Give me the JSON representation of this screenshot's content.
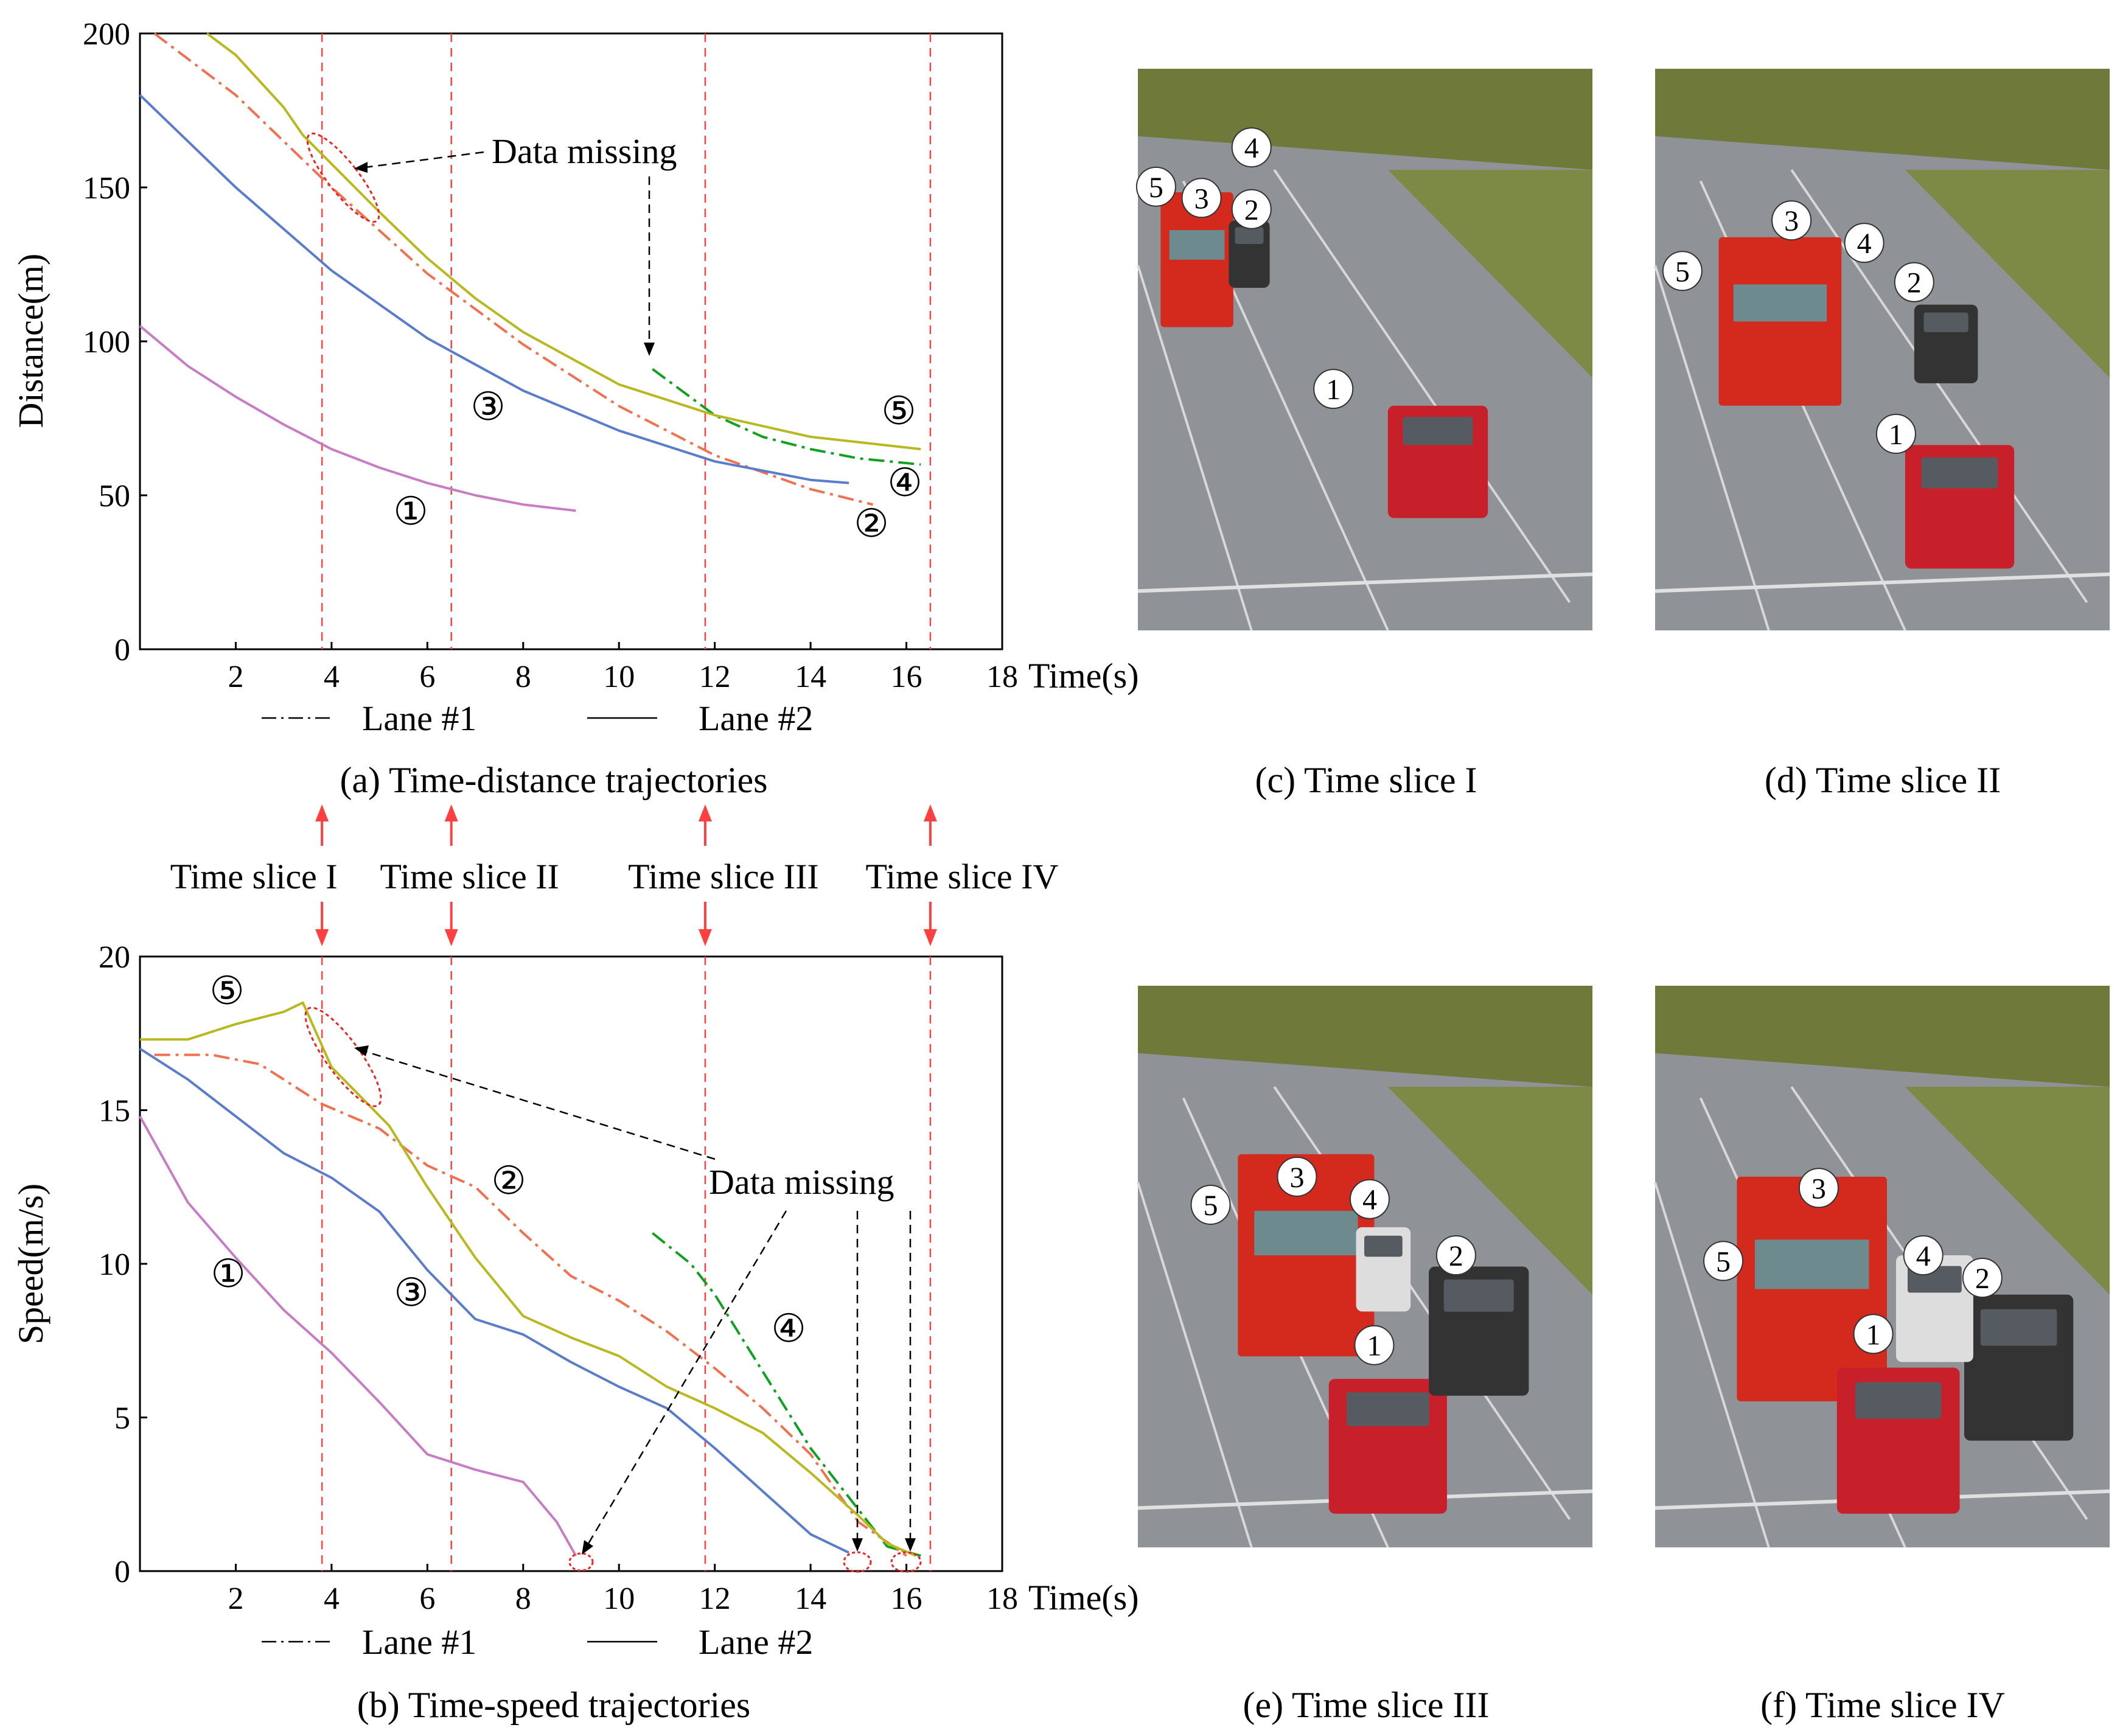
{
  "colors": {
    "c1": "#c77cc5",
    "c2": "#f07050",
    "c3": "#5a7ccc",
    "c4": "#11a020",
    "c5": "#b8b820",
    "slice": "#ff4040",
    "missing": "#ee2222"
  },
  "legend": {
    "lane1": "Lane #1",
    "lane2": "Lane #2"
  },
  "slice_labels": [
    "Time slice I",
    "Time slice II",
    "Time slice III",
    "Time slice IV"
  ],
  "slice_times": [
    3.8,
    6.5,
    11.8,
    16.5
  ],
  "photo_captions": {
    "c": "(c) Time slice I",
    "d": "(d) Time slice II",
    "e": "(e) Time slice III",
    "f": "(f) Time slice IV"
  },
  "photo_markers": [
    "1",
    "2",
    "3",
    "4",
    "5"
  ],
  "chart_data": [
    {
      "type": "line",
      "caption": "(a) Time-distance trajectories",
      "xlabel": "Time(s)",
      "ylabel": "Distance(m)",
      "xlim": [
        0,
        18
      ],
      "ylim": [
        0,
        200
      ],
      "xticks": [
        2,
        4,
        6,
        8,
        10,
        12,
        14,
        16,
        18
      ],
      "yticks": [
        0,
        50,
        100,
        150,
        200
      ],
      "annotation": "Data missing",
      "markers": [
        "①",
        "②",
        "③",
        "④",
        "⑤"
      ],
      "series": [
        {
          "name": "①",
          "lane": 2,
          "x": [
            0,
            1,
            2,
            3,
            4,
            5,
            6,
            7,
            8,
            9.1
          ],
          "y": [
            105,
            92,
            82,
            73,
            65,
            59,
            54,
            50,
            47,
            45
          ]
        },
        {
          "name": "②",
          "lane": 1,
          "x": [
            0.3,
            2,
            4,
            6,
            8,
            10,
            12,
            14,
            15.3
          ],
          "y": [
            200,
            180,
            150,
            122,
            99,
            79,
            63,
            52,
            47
          ]
        },
        {
          "name": "③",
          "lane": 2,
          "x": [
            0,
            2,
            4,
            6,
            8,
            10,
            12,
            14,
            14.8
          ],
          "y": [
            180,
            150,
            123,
            101,
            84,
            71,
            61,
            55,
            54
          ]
        },
        {
          "name": "④",
          "lane": 1,
          "x": [
            10.7,
            12,
            13,
            14,
            15,
            16.3
          ],
          "y": [
            91,
            76,
            69,
            65,
            62,
            60
          ]
        },
        {
          "name": "⑤",
          "lane": 2,
          "x": [
            1.4,
            2,
            3,
            3.4,
            5,
            6,
            7,
            8,
            10,
            12,
            14,
            16.3
          ],
          "y": [
            200,
            193,
            176,
            167,
            142,
            127,
            114,
            103,
            86,
            76,
            69,
            65
          ]
        }
      ]
    },
    {
      "type": "line",
      "caption": "(b) Time-speed trajectories",
      "xlabel": "Time(s)",
      "ylabel": "Speed(m/s)",
      "xlim": [
        0,
        18
      ],
      "ylim": [
        0,
        20
      ],
      "xticks": [
        2,
        4,
        6,
        8,
        10,
        12,
        14,
        16,
        18
      ],
      "yticks": [
        0,
        5,
        10,
        15,
        20
      ],
      "annotation": "Data missing",
      "markers": [
        "①",
        "②",
        "③",
        "④",
        "⑤"
      ],
      "series": [
        {
          "name": "①",
          "lane": 2,
          "x": [
            0,
            1,
            2,
            3,
            4,
            5,
            6,
            7,
            8,
            8.7,
            9.1
          ],
          "y": [
            14.8,
            12.0,
            10.2,
            8.5,
            7.1,
            5.5,
            3.8,
            3.3,
            2.9,
            1.6,
            0.5
          ]
        },
        {
          "name": "②",
          "lane": 1,
          "x": [
            0.3,
            1.5,
            2.5,
            3.8,
            5,
            6,
            7,
            8,
            9,
            10,
            11,
            12,
            13,
            14,
            15,
            16
          ],
          "y": [
            16.8,
            16.8,
            16.5,
            15.2,
            14.4,
            13.2,
            12.5,
            11.0,
            9.6,
            8.8,
            7.8,
            6.6,
            5.3,
            3.8,
            1.6,
            0.5
          ]
        },
        {
          "name": "③",
          "lane": 2,
          "x": [
            0,
            1,
            2,
            3,
            4,
            5,
            6,
            7,
            8,
            9,
            10,
            11,
            12,
            13,
            14,
            14.8
          ],
          "y": [
            17.0,
            16.0,
            14.8,
            13.6,
            12.8,
            11.7,
            9.8,
            8.2,
            7.7,
            6.8,
            6.0,
            5.3,
            4.0,
            2.6,
            1.2,
            0.6
          ]
        },
        {
          "name": "④",
          "lane": 1,
          "x": [
            10.7,
            11.5,
            12,
            13,
            14,
            14.5,
            15,
            15.6,
            16.3
          ],
          "y": [
            11.0,
            10.0,
            9.0,
            6.5,
            4.0,
            3.0,
            2.0,
            0.8,
            0.5
          ]
        },
        {
          "name": "⑤",
          "lane": 2,
          "x": [
            0,
            1,
            2,
            3,
            3.4,
            4,
            5.2,
            6,
            7,
            8,
            9,
            10,
            11,
            12,
            13,
            14,
            15,
            15.6,
            16.2
          ],
          "y": [
            17.3,
            17.3,
            17.8,
            18.2,
            18.5,
            16.4,
            14.5,
            12.5,
            10.2,
            8.3,
            7.6,
            7.0,
            6.0,
            5.3,
            4.5,
            3.2,
            1.8,
            0.9,
            0.5
          ]
        }
      ]
    }
  ]
}
